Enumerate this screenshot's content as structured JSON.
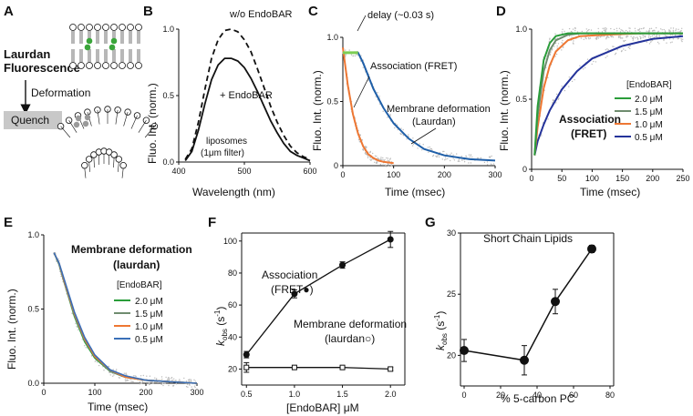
{
  "figure": {
    "panel_labels": [
      "A",
      "B",
      "C",
      "D",
      "E",
      "F",
      "G"
    ],
    "A": {
      "laurdan_line1": "Laurdan",
      "laurdan_line2": "Fluorescence",
      "deformation": "Deformation",
      "quench": "Quench",
      "colors": {
        "laurdan": "#3aa53a",
        "quench_box": "#c8c8c8"
      }
    },
    "B": {
      "ylabel": "Fluo. Int. (norm.)",
      "xlabel": "Wavelength (nm)",
      "legend_without": "w/o EndoBAR",
      "legend_with": "+ EndoBAR",
      "note_line1": "liposomes",
      "note_line2": "(1μm filter)",
      "xticks": [
        "400",
        "500",
        "600"
      ],
      "yticks": [
        "0.0",
        "0.5",
        "1.0"
      ]
    },
    "C": {
      "ylabel": "Fluo. Int. (norm.)",
      "xlabel": "Time (msec)",
      "delay_label": "delay (~0.03 s)",
      "assoc_label": "Association (FRET)",
      "deform_line1": "Membrane deformation",
      "deform_line2": "(Laurdan)",
      "xticks": [
        "0",
        "100",
        "200",
        "300"
      ],
      "yticks": [
        "0",
        "0.5",
        "1.0"
      ],
      "colors": {
        "fret": "#ee7733",
        "laurdan": "#1f5fa8",
        "delay": "#7ccd52"
      }
    },
    "D": {
      "ylabel": "Fluo. Int. (norm.)",
      "xlabel": "Time (msec)",
      "title_line1": "Association",
      "title_line2": "(FRET)",
      "legend_title": "[EndoBAR]",
      "xticks": [
        "0",
        "50",
        "100",
        "150",
        "200",
        "250"
      ],
      "yticks": [
        "0",
        "0.5",
        "1.0"
      ]
    },
    "E": {
      "ylabel": "Fluo. Int. (norm.)",
      "xlabel": "Time (msec)",
      "title_line1": "Membrane deformation",
      "title_line2": "(laurdan)",
      "legend_title": "[EndoBAR]",
      "xticks": [
        "0",
        "100",
        "200",
        "300"
      ],
      "yticks": [
        "0.0",
        "0.5",
        "1.0"
      ]
    },
    "F": {
      "ylabel_k": "k",
      "ylabel_sub": "obs",
      "ylabel_unit": " (s",
      "ylabel_sup": "-1",
      "ylabel_close": ")",
      "xlabel": "[EndoBAR] μM",
      "assoc_line1": "Association",
      "assoc_line2": "(FRET●)",
      "deform_line1": "Membrane deformation",
      "deform_line2": "(laurdan○)",
      "xticks": [
        "0.5",
        "1.0",
        "1.5",
        "2.0"
      ],
      "yticks": [
        "20",
        "40",
        "60",
        "80",
        "100"
      ]
    },
    "G": {
      "title": "Short Chain Lipids",
      "ylabel_k": "k",
      "ylabel_sub": "obs",
      "ylabel_unit": " (s",
      "ylabel_sup": "-1",
      "ylabel_close": ")",
      "xlabel": "% 5-carbon PC",
      "xticks": [
        "0",
        "20",
        "40",
        "60",
        "80"
      ],
      "yticks": [
        "20",
        "25",
        "30"
      ]
    }
  },
  "chart_data": [
    {
      "panel": "B",
      "type": "line",
      "title": "",
      "xlabel": "Wavelength (nm)",
      "ylabel": "Fluo. Int. (norm.)",
      "xlim": [
        400,
        600
      ],
      "ylim": [
        0,
        1.0
      ],
      "series": [
        {
          "name": "w/o EndoBAR",
          "style": "dashed",
          "x": [
            410,
            420,
            430,
            440,
            450,
            460,
            470,
            480,
            490,
            500,
            510,
            520,
            530,
            540,
            550,
            560,
            570,
            580,
            590,
            600
          ],
          "y": [
            0.02,
            0.1,
            0.3,
            0.55,
            0.78,
            0.92,
            0.99,
            1.0,
            0.98,
            0.92,
            0.83,
            0.7,
            0.56,
            0.42,
            0.3,
            0.2,
            0.12,
            0.07,
            0.04,
            0.02
          ]
        },
        {
          "name": "+ EndoBAR",
          "style": "solid",
          "x": [
            410,
            420,
            430,
            440,
            450,
            460,
            470,
            480,
            490,
            500,
            510,
            520,
            530,
            540,
            550,
            560,
            570,
            580,
            590,
            600
          ],
          "y": [
            0.01,
            0.08,
            0.24,
            0.44,
            0.62,
            0.73,
            0.78,
            0.78,
            0.76,
            0.71,
            0.63,
            0.53,
            0.42,
            0.31,
            0.22,
            0.14,
            0.08,
            0.05,
            0.03,
            0.01
          ]
        }
      ]
    },
    {
      "panel": "C",
      "type": "line",
      "xlabel": "Time (msec)",
      "ylabel": "Fluo. Int. (norm.)",
      "xlim": [
        0,
        300
      ],
      "ylim": [
        0,
        1.0
      ],
      "series": [
        {
          "name": "Association (FRET)",
          "x": [
            0,
            10,
            20,
            30,
            40,
            50,
            60,
            70,
            80,
            90,
            100
          ],
          "y": [
            0.92,
            0.62,
            0.4,
            0.25,
            0.15,
            0.09,
            0.06,
            0.04,
            0.03,
            0.025,
            0.02
          ]
        },
        {
          "name": "Membrane deformation (Laurdan)",
          "x": [
            0,
            10,
            20,
            30,
            40,
            60,
            80,
            100,
            130,
            160,
            200,
            250,
            300
          ],
          "y": [
            0.88,
            0.88,
            0.88,
            0.88,
            0.8,
            0.6,
            0.45,
            0.33,
            0.21,
            0.13,
            0.08,
            0.05,
            0.04
          ]
        },
        {
          "name": "delay (~0.03 s)",
          "x": [
            0,
            30
          ],
          "y": [
            0.88,
            0.88
          ]
        }
      ]
    },
    {
      "panel": "D",
      "type": "line",
      "xlabel": "Time (msec)",
      "ylabel": "Fluo. Int. (norm.)",
      "xlim": [
        0,
        250
      ],
      "ylim": [
        0,
        1.0
      ],
      "series": [
        {
          "name": "2.0 μM",
          "x": [
            5,
            10,
            20,
            30,
            40,
            60,
            80,
            120,
            180,
            250
          ],
          "y": [
            0.1,
            0.45,
            0.78,
            0.9,
            0.95,
            0.97,
            0.97,
            0.97,
            0.97,
            0.97
          ]
        },
        {
          "name": "1.5 μM",
          "x": [
            5,
            10,
            20,
            30,
            40,
            60,
            80,
            120,
            180,
            250
          ],
          "y": [
            0.1,
            0.38,
            0.7,
            0.85,
            0.92,
            0.96,
            0.97,
            0.97,
            0.97,
            0.97
          ]
        },
        {
          "name": "1.0 μM",
          "x": [
            5,
            10,
            20,
            30,
            40,
            60,
            80,
            120,
            180,
            250
          ],
          "y": [
            0.1,
            0.3,
            0.58,
            0.74,
            0.84,
            0.92,
            0.95,
            0.96,
            0.97,
            0.97
          ]
        },
        {
          "name": "0.5 μM",
          "x": [
            5,
            10,
            20,
            30,
            50,
            75,
            100,
            150,
            200,
            250
          ],
          "y": [
            0.1,
            0.2,
            0.32,
            0.42,
            0.57,
            0.7,
            0.79,
            0.88,
            0.93,
            0.95
          ]
        }
      ]
    },
    {
      "panel": "E",
      "type": "line",
      "xlabel": "Time (msec)",
      "ylabel": "Fluo. Int. (norm.)",
      "xlim": [
        0,
        300
      ],
      "ylim": [
        0,
        1.0
      ],
      "series": [
        {
          "name": "2.0 μM",
          "x": [
            20,
            30,
            40,
            60,
            80,
            100,
            130,
            160,
            200,
            250,
            300
          ],
          "y": [
            0.88,
            0.8,
            0.68,
            0.45,
            0.28,
            0.17,
            0.08,
            0.04,
            0.02,
            0.01,
            0.0
          ]
        },
        {
          "name": "1.5 μM",
          "x": [
            20,
            30,
            40,
            60,
            80,
            100,
            130,
            160,
            200,
            250,
            300
          ],
          "y": [
            0.88,
            0.8,
            0.68,
            0.46,
            0.29,
            0.18,
            0.08,
            0.04,
            0.02,
            0.01,
            0.0
          ]
        },
        {
          "name": "1.0 μM",
          "x": [
            20,
            30,
            40,
            60,
            80,
            100,
            130,
            160,
            200,
            250,
            300
          ],
          "y": [
            0.88,
            0.81,
            0.69,
            0.47,
            0.3,
            0.18,
            0.09,
            0.04,
            0.02,
            0.01,
            0.0
          ]
        },
        {
          "name": "0.5 μM",
          "x": [
            20,
            30,
            40,
            60,
            80,
            100,
            130,
            160,
            200,
            250,
            300
          ],
          "y": [
            0.88,
            0.81,
            0.7,
            0.48,
            0.31,
            0.19,
            0.09,
            0.05,
            0.02,
            0.01,
            0.0
          ]
        }
      ]
    },
    {
      "panel": "F",
      "type": "scatter",
      "xlabel": "[EndoBAR] μM",
      "ylabel": "kobs (s-1)",
      "xlim": [
        0.45,
        2.15
      ],
      "ylim": [
        10,
        105
      ],
      "series": [
        {
          "name": "Association (FRET)",
          "marker": "filled-circle",
          "x": [
            0.5,
            1.0,
            1.5,
            2.0
          ],
          "y": [
            29,
            67,
            85,
            101
          ],
          "err": [
            2,
            2.5,
            2,
            5
          ]
        },
        {
          "name": "Membrane deformation (laurdan)",
          "marker": "open-square",
          "x": [
            0.5,
            1.0,
            1.5,
            2.0
          ],
          "y": [
            21,
            21,
            21,
            20
          ],
          "err": [
            3,
            0,
            1,
            1
          ]
        }
      ]
    },
    {
      "panel": "G",
      "type": "scatter",
      "title": "Short Chain Lipids",
      "xlabel": "% 5-carbon PC",
      "ylabel": "kobs (s-1)",
      "xlim": [
        -2,
        82
      ],
      "ylim": [
        17.5,
        30
      ],
      "series": [
        {
          "name": "Short Chain Lipids",
          "marker": "filled-circle",
          "x": [
            0,
            33,
            50,
            70
          ],
          "y": [
            20.4,
            19.6,
            24.4,
            28.7
          ],
          "err": [
            0.9,
            1.2,
            1.0,
            0.3
          ]
        }
      ]
    }
  ]
}
